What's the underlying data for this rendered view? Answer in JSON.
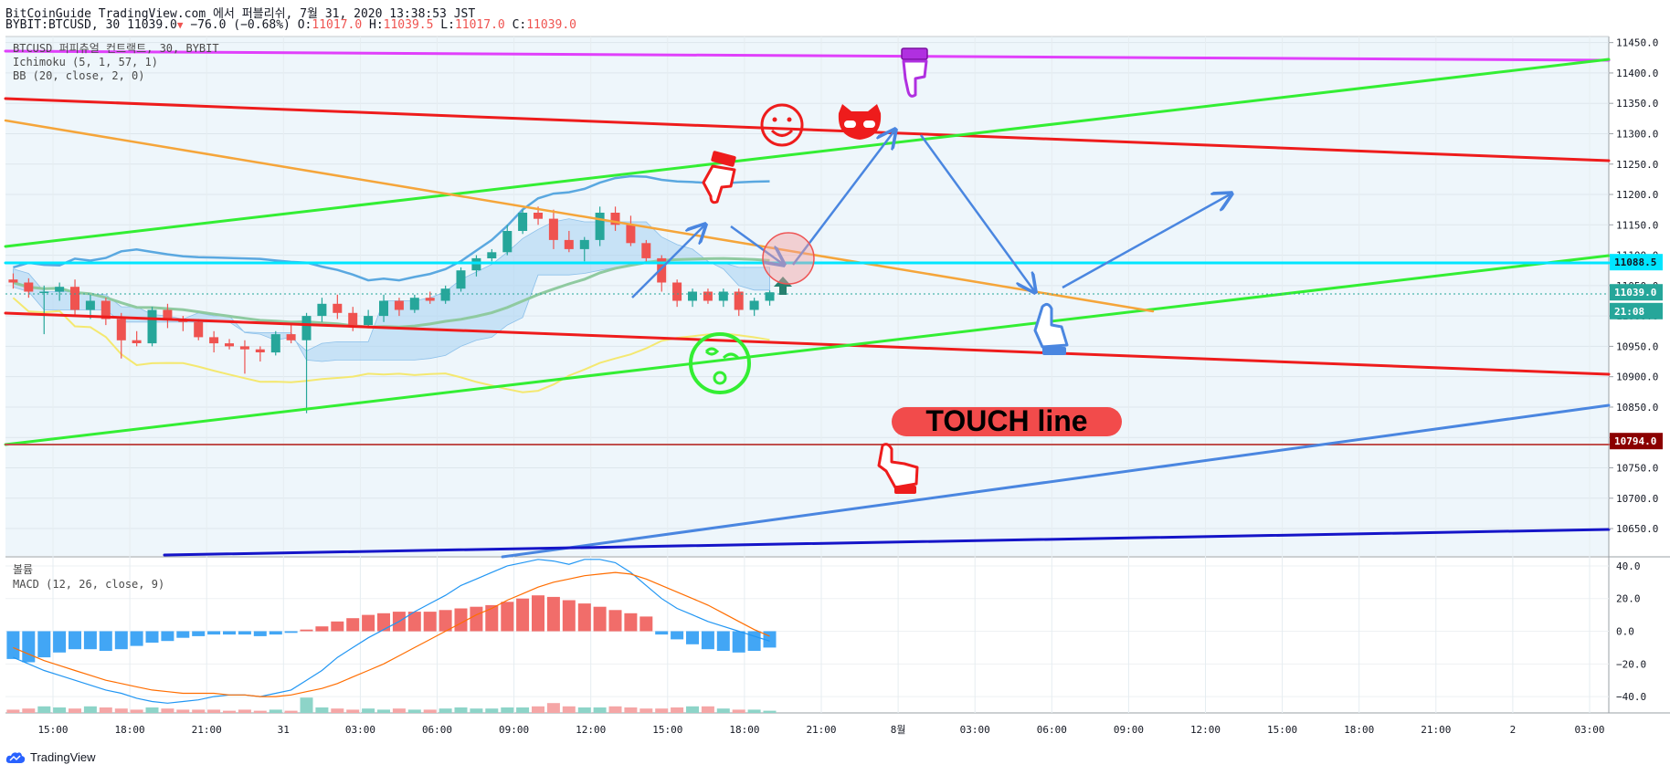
{
  "header": {
    "line1": "BitCoinGuide TradingView.com 에서 퍼블리쉬, 7월 31, 2020 13:38:53 JST",
    "symbol": "BYBIT:BTCUSD, 30",
    "price": "11039.0",
    "change": "−76.0 (−0.68%)",
    "o_label": "O:",
    "o": "11017.0",
    "h_label": "H:",
    "h": "11039.5",
    "l_label": "L:",
    "l": "11017.0",
    "c_label": "C:",
    "c": "11039.0"
  },
  "legend": {
    "title": "BTCUSD 퍼피츄얼 컨트랙트, 30, BYBIT",
    "ichimoku": "Ichimoku (5, 1, 57, 1)",
    "bb": "BB (20, close, 2, 0)",
    "volume": "볼륨",
    "macd": "MACD (12, 26, close, 9)"
  },
  "annotation": {
    "touch_line": "TOUCH line"
  },
  "colors": {
    "up": "#26a69a",
    "down": "#ef5350",
    "red_line": "#ee1c1c",
    "green_line": "#33ee33",
    "orange_line": "#f5a53a",
    "cyan_line": "#00e5ff",
    "magenta_line": "#e040fb",
    "blue_line": "#4a86e0",
    "navy_line": "#1515c8",
    "arrow": "#4a86e0"
  },
  "footer": {
    "brand": "TradingView"
  },
  "chart_data": [
    {
      "type": "candlestick",
      "title": "BTCUSD 퍼피츄얼 컨트랙트, 30, BYBIT",
      "ylim": [
        10605,
        11460
      ],
      "y_ticks": [
        "11450.0",
        "11400.0",
        "11350.0",
        "11300.0",
        "11250.0",
        "11200.0",
        "11150.0",
        "11100.0",
        "11050.0",
        "11000.0",
        "10950.0",
        "10900.0",
        "10850.0",
        "10800.0",
        "10750.0",
        "10700.0",
        "10650.0"
      ],
      "x_ticks": [
        "15:00",
        "18:00",
        "21:00",
        "31",
        "03:00",
        "06:00",
        "09:00",
        "12:00",
        "15:00",
        "18:00",
        "21:00",
        "8월",
        "03:00",
        "06:00",
        "09:00",
        "12:00",
        "15:00",
        "18:00",
        "21:00",
        "2",
        "03:00"
      ],
      "price_labels": [
        {
          "label": "11088.5",
          "value": 11088.5,
          "color": "#00e5ff",
          "text_color": "#131722"
        },
        {
          "label": "11039.0",
          "value": 11039.0,
          "color": "#26a69a",
          "text_color": "#ffffff"
        },
        {
          "label": "21:08",
          "value": 11008.0,
          "color": "#26a69a",
          "text_color": "#ffffff"
        },
        {
          "label": "10794.0",
          "value": 10794.0,
          "color": "#8b0000",
          "text_color": "#ffffff"
        }
      ],
      "candles": [
        [
          11060,
          11070,
          11045,
          11055
        ],
        [
          11055,
          11062,
          11030,
          11040
        ],
        [
          11040,
          11050,
          10970,
          11040
        ],
        [
          11040,
          11055,
          11025,
          11048
        ],
        [
          11048,
          11060,
          11000,
          11010
        ],
        [
          11010,
          11035,
          10995,
          11025
        ],
        [
          11025,
          11030,
          10985,
          10995
        ],
        [
          10995,
          11005,
          10930,
          10960
        ],
        [
          10960,
          10975,
          10950,
          10955
        ],
        [
          10955,
          11015,
          10950,
          11010
        ],
        [
          11010,
          11020,
          10980,
          10995
        ],
        [
          10995,
          11000,
          10975,
          10990
        ],
        [
          10990,
          10995,
          10960,
          10965
        ],
        [
          10965,
          10975,
          10940,
          10955
        ],
        [
          10955,
          10962,
          10945,
          10950
        ],
        [
          10950,
          10960,
          10905,
          10945
        ],
        [
          10945,
          10950,
          10925,
          10940
        ],
        [
          10940,
          10975,
          10935,
          10970
        ],
        [
          10970,
          10985,
          10955,
          10960
        ],
        [
          10960,
          11005,
          10840,
          11000
        ],
        [
          11000,
          11030,
          10990,
          11020
        ],
        [
          11020,
          11035,
          10995,
          11005
        ],
        [
          11005,
          11015,
          10975,
          10985
        ],
        [
          10985,
          11010,
          10980,
          11000
        ],
        [
          11000,
          11035,
          10990,
          11025
        ],
        [
          11025,
          11030,
          11000,
          11010
        ],
        [
          11010,
          11035,
          11005,
          11030
        ],
        [
          11030,
          11040,
          11020,
          11025
        ],
        [
          11025,
          11050,
          11020,
          11045
        ],
        [
          11045,
          11080,
          11040,
          11075
        ],
        [
          11075,
          11100,
          11065,
          11095
        ],
        [
          11095,
          11110,
          11090,
          11105
        ],
        [
          11105,
          11150,
          11100,
          11140
        ],
        [
          11140,
          11175,
          11135,
          11170
        ],
        [
          11170,
          11180,
          11150,
          11160
        ],
        [
          11160,
          11175,
          11110,
          11125
        ],
        [
          11125,
          11140,
          11105,
          11110
        ],
        [
          11110,
          11130,
          11090,
          11125
        ],
        [
          11125,
          11180,
          11115,
          11170
        ],
        [
          11170,
          11180,
          11140,
          11150
        ],
        [
          11150,
          11165,
          11115,
          11120
        ],
        [
          11120,
          11125,
          11090,
          11095
        ],
        [
          11095,
          11100,
          11040,
          11055
        ],
        [
          11055,
          11060,
          11015,
          11025
        ],
        [
          11025,
          11045,
          11015,
          11040
        ],
        [
          11040,
          11045,
          11020,
          11025
        ],
        [
          11025,
          11045,
          11015,
          11040
        ],
        [
          11040,
          11045,
          11000,
          11010
        ],
        [
          11010,
          11030,
          11000,
          11025
        ],
        [
          11025,
          11042,
          11017,
          11039
        ]
      ]
    },
    {
      "type": "bar",
      "title": "MACD (12, 26, close, 9)",
      "ylim": [
        -50,
        45
      ],
      "y_ticks": [
        "40.0",
        "20.0",
        "0.0",
        "−20.0",
        "−40.0"
      ],
      "histogram": [
        -17,
        -19,
        -16,
        -13,
        -11,
        -11,
        -12,
        -11,
        -9,
        -7,
        -6,
        -4,
        -3,
        -2,
        -2,
        -2,
        -3,
        -2,
        -1,
        1,
        3,
        6,
        8,
        10,
        11,
        12,
        12,
        12,
        13,
        14,
        15,
        16,
        18,
        20,
        22,
        21,
        19,
        17,
        15,
        13,
        11,
        9,
        -2,
        -5,
        -8,
        -11,
        -12,
        -13,
        -12,
        -10
      ],
      "macd_line": [
        -16,
        -20,
        -24,
        -27,
        -30,
        -33,
        -36,
        -38,
        -41,
        -43,
        -44,
        -43,
        -42,
        -40,
        -39,
        -39,
        -40,
        -38,
        -36,
        -30,
        -24,
        -16,
        -10,
        -4,
        1,
        6,
        12,
        17,
        22,
        28,
        32,
        36,
        40,
        42,
        44,
        43,
        41,
        44,
        44,
        42,
        36,
        28,
        20,
        14,
        10,
        6,
        3,
        0,
        -3,
        -6
      ],
      "signal_line": [
        -10,
        -14,
        -18,
        -21,
        -24,
        -27,
        -30,
        -32,
        -34,
        -36,
        -37,
        -38,
        -38,
        -38,
        -39,
        -39,
        -40,
        -40,
        -39,
        -37,
        -35,
        -32,
        -28,
        -24,
        -20,
        -15,
        -10,
        -5,
        0,
        5,
        10,
        14,
        19,
        23,
        27,
        30,
        32,
        34,
        35,
        36,
        35,
        32,
        28,
        24,
        20,
        16,
        11,
        6,
        1,
        -3
      ],
      "volume": [
        3,
        4,
        6,
        5,
        4,
        6,
        5,
        4,
        3,
        5,
        4,
        3,
        3,
        3,
        2,
        3,
        2,
        3,
        2,
        14,
        5,
        4,
        3,
        4,
        3,
        4,
        3,
        3,
        4,
        5,
        4,
        4,
        5,
        5,
        6,
        9,
        6,
        5,
        5,
        6,
        5,
        4,
        4,
        5,
        6,
        6,
        4,
        3,
        3,
        2
      ]
    }
  ]
}
